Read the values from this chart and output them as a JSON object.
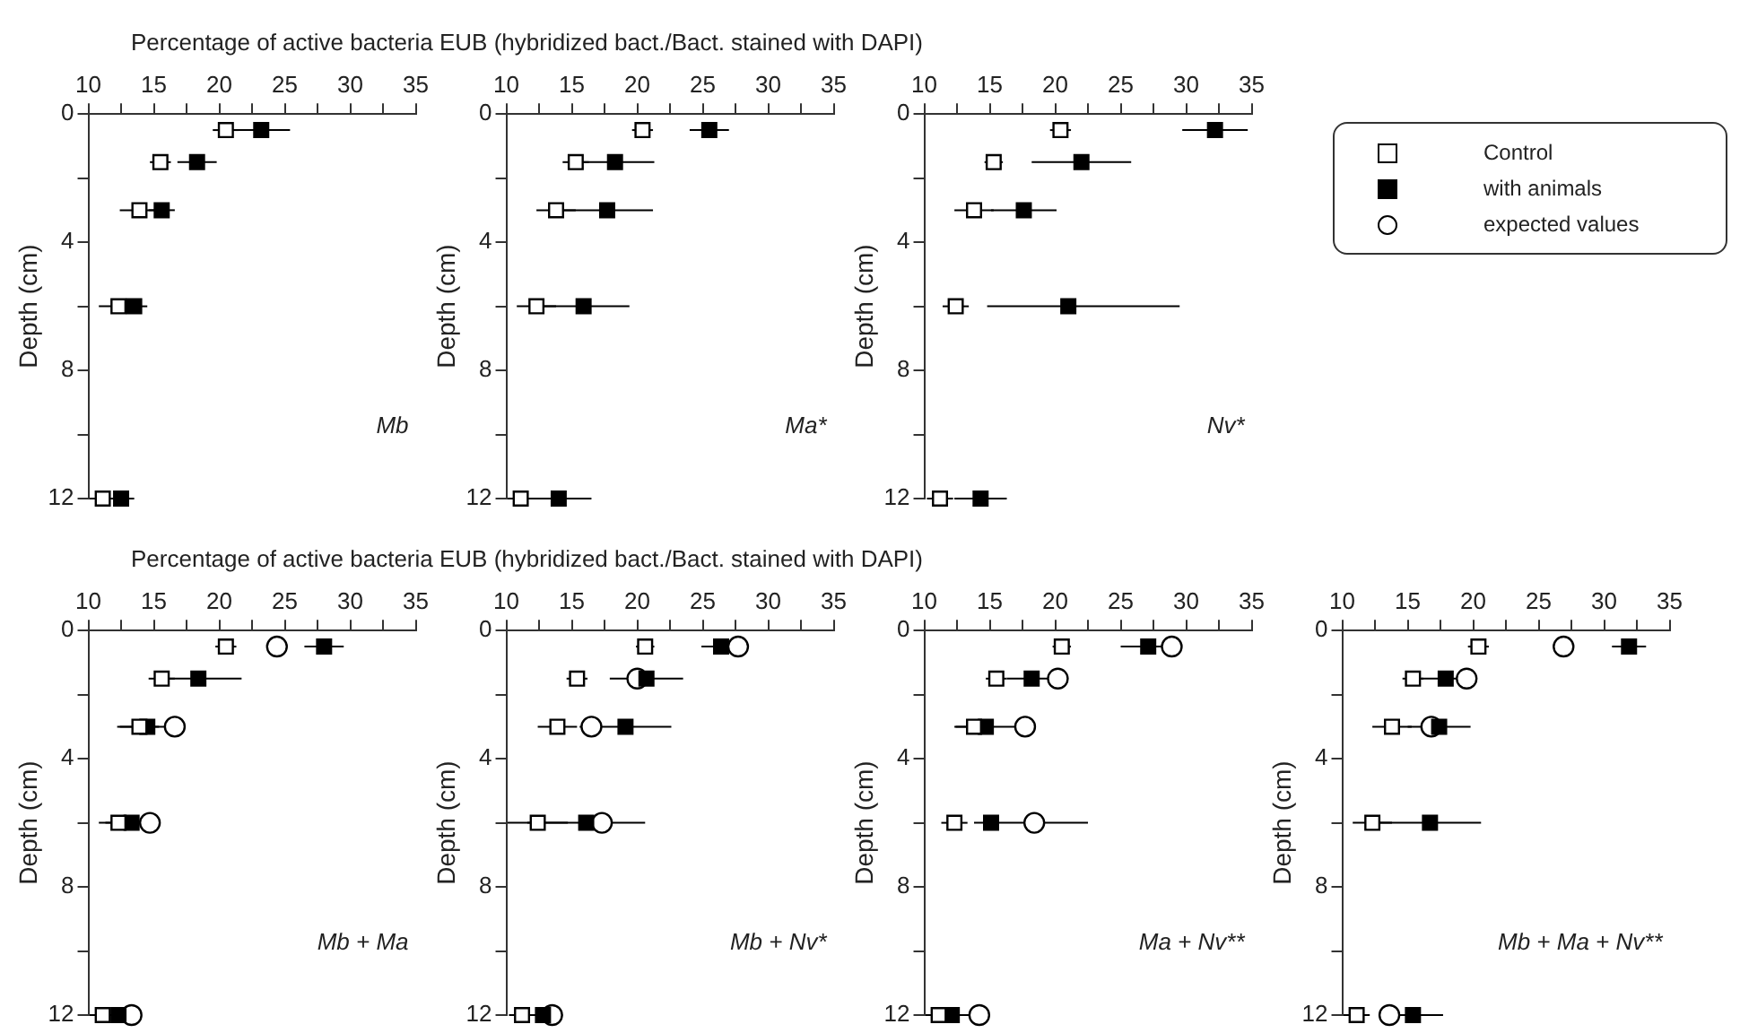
{
  "chart_data": [
    {
      "type": "scatter",
      "title": "Percentage of active bacteria EUB (hybridized bact./Bact. stained with DAPI)",
      "ylabel": "Depth (cm)",
      "annotations": [
        "Mb"
      ],
      "xlim": [
        10,
        35
      ],
      "xticks": [
        10,
        {
          "value": 12.5,
          "label": null
        },
        15,
        {
          "value": 17.5,
          "label": null
        },
        20,
        {
          "value": 22.5,
          "label": null
        },
        25,
        {
          "value": 27.5,
          "label": null
        },
        30,
        {
          "value": 32.5,
          "label": null
        },
        35
      ],
      "ylim": [
        12,
        0
      ],
      "yticks": [
        0,
        {
          "value": 2,
          "label": null
        },
        4,
        {
          "value": 6,
          "label": null
        },
        8,
        {
          "value": 10,
          "label": null
        },
        12
      ],
      "series": [
        {
          "color": "#ffffff",
          "marker": "square",
          "x": [
            20.5,
            15.5,
            13.9,
            12.3,
            11.1
          ],
          "values": [
            0.5,
            1.5,
            3,
            6,
            12
          ],
          "xerrors": [
            1,
            0.8,
            1.5,
            1.5,
            1
          ]
        },
        {
          "color": "#000000",
          "marker": "square",
          "x": [
            23.2,
            18.3,
            15.6,
            13.5,
            12.5
          ],
          "values": [
            0.5,
            1.5,
            3,
            6,
            12
          ],
          "xerrors": [
            2.2,
            1.5,
            1,
            1,
            1
          ]
        }
      ]
    },
    {
      "type": "scatter",
      "ylabel": "Depth (cm)",
      "annotations": [
        "Ma*"
      ],
      "xlim": [
        10,
        35
      ],
      "xticks": [
        10,
        {
          "value": 12.5,
          "label": null
        },
        15,
        {
          "value": 17.5,
          "label": null
        },
        20,
        {
          "value": 22.5,
          "label": null
        },
        25,
        {
          "value": 27.5,
          "label": null
        },
        30,
        {
          "value": 32.5,
          "label": null
        },
        35
      ],
      "ylim": [
        12,
        0
      ],
      "yticks": [
        0,
        {
          "value": 2,
          "label": null
        },
        4,
        {
          "value": 6,
          "label": null
        },
        8,
        {
          "value": 10,
          "label": null
        },
        12
      ],
      "series": [
        {
          "color": "#ffffff",
          "marker": "square",
          "x": [
            20.4,
            15.3,
            13.8,
            12.3,
            11.1
          ],
          "values": [
            0.5,
            1.5,
            3,
            6,
            12
          ],
          "xerrors": [
            0.8,
            1,
            1.5,
            1.5,
            1
          ]
        },
        {
          "color": "#000000",
          "marker": "square",
          "x": [
            25.5,
            18.3,
            17.7,
            15.9,
            14
          ],
          "values": [
            0.5,
            1.5,
            3,
            6,
            12
          ],
          "xerrors": [
            1.5,
            3,
            3.5,
            3.5,
            2.5
          ]
        }
      ]
    },
    {
      "type": "scatter",
      "ylabel": "Depth (cm)",
      "annotations": [
        "Nv*"
      ],
      "xlim": [
        10,
        35
      ],
      "xticks": [
        10,
        {
          "value": 12.5,
          "label": null
        },
        15,
        {
          "value": 17.5,
          "label": null
        },
        20,
        {
          "value": 22.5,
          "label": null
        },
        25,
        {
          "value": 27.5,
          "label": null
        },
        30,
        {
          "value": 32.5,
          "label": null
        },
        35
      ],
      "ylim": [
        12,
        0
      ],
      "yticks": [
        0,
        {
          "value": 2,
          "label": null
        },
        4,
        {
          "value": 6,
          "label": null
        },
        8,
        {
          "value": 10,
          "label": null
        },
        12
      ],
      "series": [
        {
          "color": "#ffffff",
          "marker": "square",
          "x": [
            20.4,
            15.3,
            13.8,
            12.4,
            11.2
          ],
          "values": [
            0.5,
            1.5,
            3,
            6,
            12
          ],
          "xerrors": [
            0.8,
            0.7,
            1.5,
            1,
            1
          ]
        },
        {
          "color": "#000000",
          "marker": "square",
          "x": [
            32.2,
            22,
            17.6,
            21,
            14.3
          ],
          "values": [
            0.5,
            1.5,
            3,
            6,
            12
          ],
          "xerrors": [
            2.5,
            3.8,
            2.5,
            [
              14.8,
              29.5
            ],
            2
          ]
        }
      ]
    },
    {
      "type": "scatter",
      "title": "Percentage of active bacteria EUB (hybridized bact./Bact. stained with DAPI)",
      "ylabel": "Depth (cm)",
      "annotations": [
        "Mb + Ma"
      ],
      "xlim": [
        10,
        35
      ],
      "xticks": [
        10,
        {
          "value": 12.5,
          "label": null
        },
        15,
        {
          "value": 17.5,
          "label": null
        },
        20,
        {
          "value": 22.5,
          "label": null
        },
        25,
        {
          "value": 27.5,
          "label": null
        },
        30,
        {
          "value": 32.5,
          "label": null
        },
        35
      ],
      "ylim": [
        12,
        0
      ],
      "yticks": [
        0,
        {
          "value": 2,
          "label": null
        },
        4,
        {
          "value": 6,
          "label": null
        },
        8,
        {
          "value": 10,
          "label": null
        },
        12
      ],
      "series": [
        {
          "color": "#ffffff",
          "marker": "square",
          "x": [
            20.5,
            15.6,
            13.9,
            12.3,
            11.1
          ],
          "values": [
            0.5,
            1.5,
            3,
            6,
            12
          ],
          "xerrors": [
            0.8,
            1,
            1.5,
            1.5,
            1
          ]
        },
        {
          "color": "#000000",
          "marker": "square",
          "x": [
            28,
            18.4,
            14.5,
            13.3,
            12.3
          ],
          "values": [
            0.5,
            1.5,
            3,
            6,
            12
          ],
          "xerrors": [
            1.5,
            3.3,
            2.3,
            2,
            1.5
          ]
        },
        {
          "color": "#ffffff",
          "marker": "circle",
          "x": [
            24.4,
            null,
            16.6,
            14.7,
            13.3
          ],
          "values": [
            0.5,
            null,
            3,
            6,
            12
          ]
        }
      ]
    },
    {
      "type": "scatter",
      "ylabel": "Depth (cm)",
      "annotations": [
        "Mb + Nv*"
      ],
      "xlim": [
        10,
        35
      ],
      "xticks": [
        10,
        {
          "value": 12.5,
          "label": null
        },
        15,
        {
          "value": 17.5,
          "label": null
        },
        20,
        {
          "value": 22.5,
          "label": null
        },
        25,
        {
          "value": 27.5,
          "label": null
        },
        30,
        {
          "value": 32.5,
          "label": null
        },
        35
      ],
      "ylim": [
        12,
        0
      ],
      "yticks": [
        0,
        {
          "value": 2,
          "label": null
        },
        4,
        {
          "value": 6,
          "label": null
        },
        8,
        {
          "value": 10,
          "label": null
        },
        12
      ],
      "series": [
        {
          "color": "#ffffff",
          "marker": "square",
          "x": [
            20.6,
            15.4,
            13.9,
            12.4,
            11.2
          ],
          "values": [
            0.5,
            1.5,
            3,
            6,
            12
          ],
          "xerrors": [
            0.7,
            0.8,
            1.5,
            2.3,
            1
          ]
        },
        {
          "color": "#000000",
          "marker": "square",
          "x": [
            26.4,
            20.7,
            19.1,
            16.1,
            12.8
          ],
          "values": [
            0.5,
            1.5,
            3,
            6,
            12
          ],
          "xerrors": [
            1.5,
            2.8,
            3.5,
            4.5,
            1.5
          ]
        },
        {
          "color": "#ffffff",
          "marker": "circle",
          "x": [
            27.7,
            20,
            16.5,
            17.3,
            13.5
          ],
          "values": [
            0.5,
            1.5,
            3,
            6,
            12
          ]
        }
      ]
    },
    {
      "type": "scatter",
      "ylabel": "Depth (cm)",
      "annotations": [
        "Ma + Nv**"
      ],
      "xlim": [
        10,
        35
      ],
      "xticks": [
        10,
        {
          "value": 12.5,
          "label": null
        },
        15,
        {
          "value": 17.5,
          "label": null
        },
        20,
        {
          "value": 22.5,
          "label": null
        },
        25,
        {
          "value": 27.5,
          "label": null
        },
        30,
        {
          "value": 32.5,
          "label": null
        },
        35
      ],
      "ylim": [
        12,
        0
      ],
      "yticks": [
        0,
        {
          "value": 2,
          "label": null
        },
        4,
        {
          "value": 6,
          "label": null
        },
        8,
        {
          "value": 10,
          "label": null
        },
        12
      ],
      "series": [
        {
          "color": "#ffffff",
          "marker": "square",
          "x": [
            20.5,
            15.5,
            13.8,
            12.3,
            11.1
          ],
          "values": [
            0.5,
            1.5,
            3,
            6,
            12
          ],
          "xerrors": [
            0.7,
            0.8,
            1.5,
            1,
            1
          ]
        },
        {
          "color": "#000000",
          "marker": "square",
          "x": [
            27.1,
            18.2,
            14.7,
            15.1,
            12.1
          ],
          "values": [
            0.5,
            1.5,
            3,
            6,
            12
          ],
          "xerrors": [
            2.1,
            1.9,
            2.3,
            [
              13.8,
              22.5
            ],
            1.5
          ]
        },
        {
          "color": "#ffffff",
          "marker": "circle",
          "x": [
            28.9,
            20.2,
            17.7,
            18.4,
            14.2
          ],
          "values": [
            0.5,
            1.5,
            3,
            6,
            12
          ]
        }
      ]
    },
    {
      "type": "scatter",
      "ylabel": "Depth (cm)",
      "annotations": [
        "Mb + Ma + Nv**"
      ],
      "legend": "top",
      "xlim": [
        10,
        35
      ],
      "xticks": [
        10,
        {
          "value": 12.5,
          "label": null
        },
        15,
        {
          "value": 17.5,
          "label": null
        },
        20,
        {
          "value": 22.5,
          "label": null
        },
        25,
        {
          "value": 27.5,
          "label": null
        },
        30,
        {
          "value": 32.5,
          "label": null
        },
        35
      ],
      "ylim": [
        12,
        0
      ],
      "yticks": [
        0,
        {
          "value": 2,
          "label": null
        },
        4,
        {
          "value": 6,
          "label": null
        },
        8,
        {
          "value": 10,
          "label": null
        },
        12
      ],
      "series": [
        {
          "name": "Control",
          "color": "#ffffff",
          "marker": "square",
          "x": [
            20.4,
            15.4,
            13.8,
            12.3,
            11.1
          ],
          "values": [
            0.5,
            1.5,
            3,
            6,
            12
          ],
          "xerrors": [
            0.8,
            0.8,
            1.5,
            1.5,
            1
          ]
        },
        {
          "name": "with animals",
          "color": "#000000",
          "marker": "square",
          "x": [
            31.9,
            17.9,
            17.4,
            16.7,
            15.4
          ],
          "values": [
            0.5,
            1.5,
            3,
            6,
            12
          ],
          "xerrors": [
            1.3,
            1.9,
            2.4,
            3.9,
            2.3
          ]
        },
        {
          "name": "expected values",
          "color": "#ffffff",
          "marker": "circle",
          "x": [
            26.9,
            19.5,
            16.8,
            null,
            13.6
          ],
          "values": [
            0.5,
            1.5,
            3,
            null,
            12
          ]
        }
      ]
    }
  ]
}
